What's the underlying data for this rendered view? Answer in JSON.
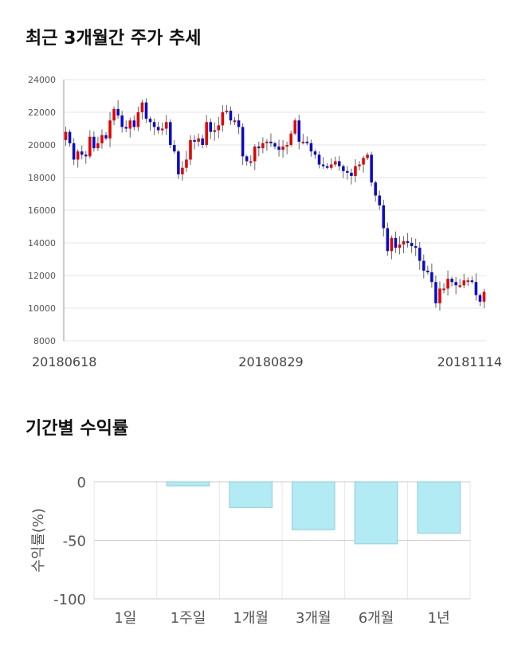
{
  "titles": {
    "price_trend": "최근 3개월간 주가 추세",
    "period_returns": "기간별 수익률"
  },
  "colors": {
    "up": "#e00000",
    "down": "#0a0ac8",
    "bar_fill": "#b3ebf5",
    "bar_stroke": "#8cccd8",
    "grid": "#e6e6e6"
  },
  "chart_data": [
    {
      "type": "candlestick",
      "title": "최근 3개월간 주가 추세",
      "ylim": [
        8000,
        24000
      ],
      "yticks": [
        "24000",
        "22000",
        "20000",
        "18000",
        "16000",
        "14000",
        "12000",
        "10000",
        "8000"
      ],
      "x_labels": [
        "20180618",
        "20180829",
        "20181114"
      ],
      "grid": true,
      "closes": [
        20800,
        20100,
        19100,
        19600,
        19400,
        19300,
        20500,
        19800,
        20100,
        20600,
        20400,
        21500,
        22200,
        21800,
        21100,
        21000,
        21500,
        21100,
        22000,
        22600,
        21600,
        21400,
        21100,
        20900,
        21000,
        21400,
        20000,
        19600,
        18200,
        18600,
        19100,
        20300,
        20200,
        20400,
        20000,
        21400,
        20800,
        20900,
        21200,
        22000,
        22100,
        21500,
        21500,
        21100,
        19300,
        19000,
        19000,
        19900,
        19800,
        20100,
        20200,
        20100,
        19900,
        19700,
        19900,
        20000,
        20700,
        21500,
        20200,
        20200,
        20100,
        19600,
        19400,
        18800,
        18700,
        18600,
        18800,
        19000,
        18700,
        18400,
        18300,
        18100,
        18700,
        18800,
        19200,
        19400,
        17700,
        16900,
        16300,
        14900,
        13500,
        14300,
        13700,
        13900,
        14100,
        14000,
        13800,
        13700,
        12900,
        12300,
        12200,
        11600,
        10300,
        11200,
        11200,
        11800,
        11600,
        11400,
        11400,
        11700,
        11700,
        11600,
        10800,
        10400,
        11000
      ],
      "ohlc": [
        [
          20300,
          21000,
          20200,
          20800
        ]
      ]
    },
    {
      "type": "bar",
      "title": "기간별 수익률",
      "ylabel": "수익률(%)",
      "ylim": [
        -100,
        0
      ],
      "yticks": [
        "0",
        "-50",
        "-100"
      ],
      "categories": [
        "1일",
        "1주일",
        "1개월",
        "3개월",
        "6개월",
        "1년"
      ],
      "values": [
        0,
        -3.5,
        -22,
        -41,
        -53,
        -44
      ],
      "grid": true
    }
  ]
}
